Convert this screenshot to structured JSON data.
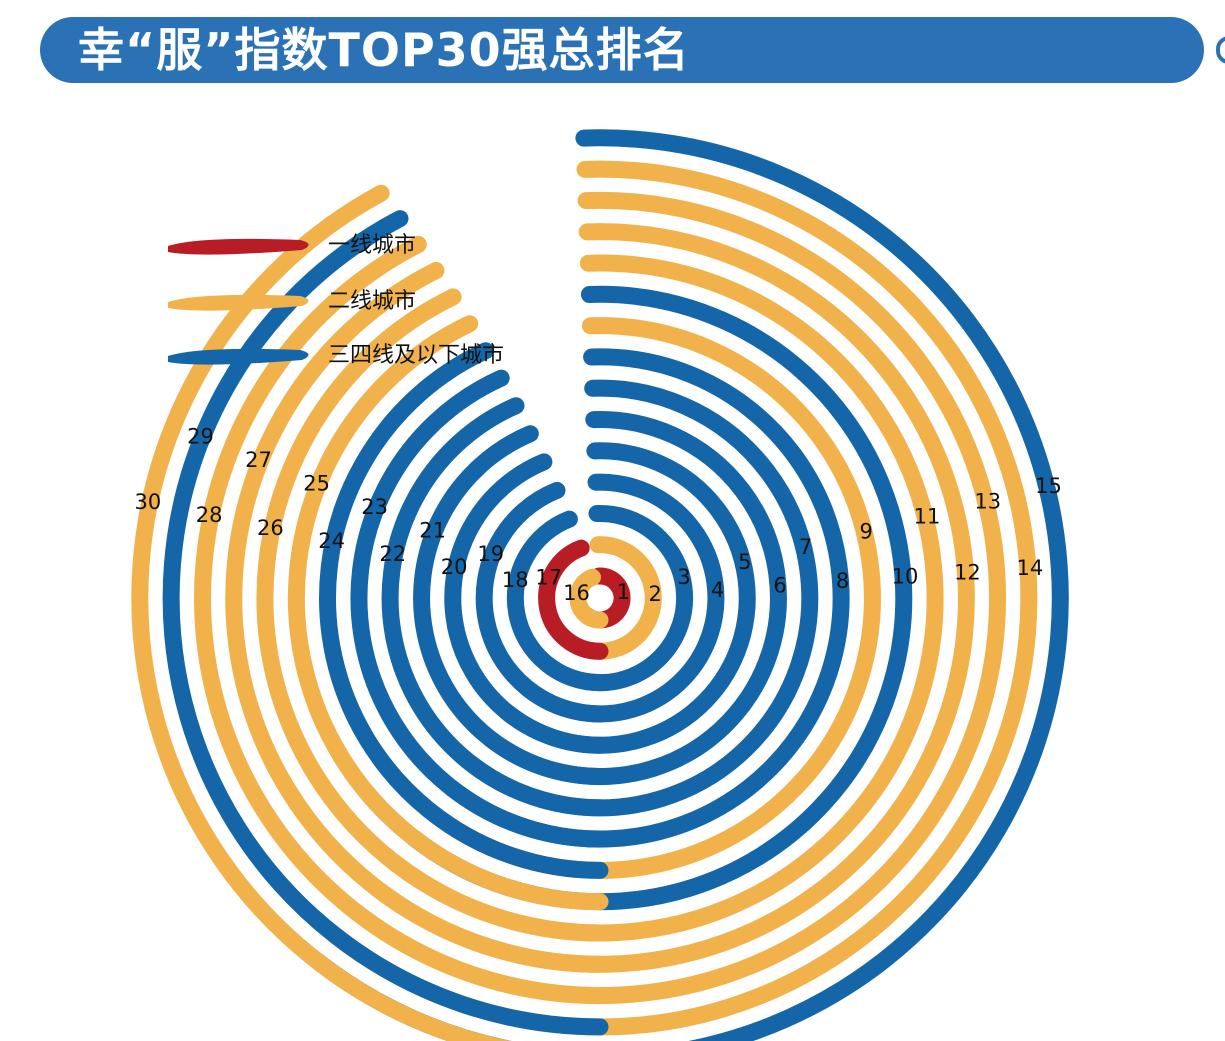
{
  "header": {
    "title": "幸“服”指数TOP30强总排名"
  },
  "colors": {
    "header": "#2a72b5",
    "tier1": "#b81d25",
    "tier2": "#f1b24c",
    "tier3": "#1466a8"
  },
  "chart_data": {
    "type": "radial-bar",
    "title": "幸“服”指数TOP30强总排名",
    "legend": [
      {
        "key": "tier1",
        "name": "一线城市"
      },
      {
        "key": "tier2",
        "name": "二线城市"
      },
      {
        "key": "tier3",
        "name": "三四线及以下城市"
      }
    ],
    "legend_position": "top-left",
    "ranks": [
      {
        "rank": 1,
        "tier": "tier1"
      },
      {
        "rank": 2,
        "tier": "tier2"
      },
      {
        "rank": 3,
        "tier": "tier3"
      },
      {
        "rank": 4,
        "tier": "tier3"
      },
      {
        "rank": 5,
        "tier": "tier3"
      },
      {
        "rank": 6,
        "tier": "tier3"
      },
      {
        "rank": 7,
        "tier": "tier3"
      },
      {
        "rank": 8,
        "tier": "tier3"
      },
      {
        "rank": 9,
        "tier": "tier2"
      },
      {
        "rank": 10,
        "tier": "tier3"
      },
      {
        "rank": 11,
        "tier": "tier2"
      },
      {
        "rank": 12,
        "tier": "tier2"
      },
      {
        "rank": 13,
        "tier": "tier2"
      },
      {
        "rank": 14,
        "tier": "tier2"
      },
      {
        "rank": 15,
        "tier": "tier3"
      },
      {
        "rank": 16,
        "tier": "tier2"
      },
      {
        "rank": 17,
        "tier": "tier1"
      },
      {
        "rank": 18,
        "tier": "tier3"
      },
      {
        "rank": 19,
        "tier": "tier3"
      },
      {
        "rank": 20,
        "tier": "tier3"
      },
      {
        "rank": 21,
        "tier": "tier3"
      },
      {
        "rank": 22,
        "tier": "tier3"
      },
      {
        "rank": 23,
        "tier": "tier3"
      },
      {
        "rank": 24,
        "tier": "tier3"
      },
      {
        "rank": 25,
        "tier": "tier2"
      },
      {
        "rank": 26,
        "tier": "tier2"
      },
      {
        "rank": 27,
        "tier": "tier2"
      },
      {
        "rank": 28,
        "tier": "tier2"
      },
      {
        "rank": 29,
        "tier": "tier3"
      },
      {
        "rank": 30,
        "tier": "tier2"
      }
    ]
  }
}
